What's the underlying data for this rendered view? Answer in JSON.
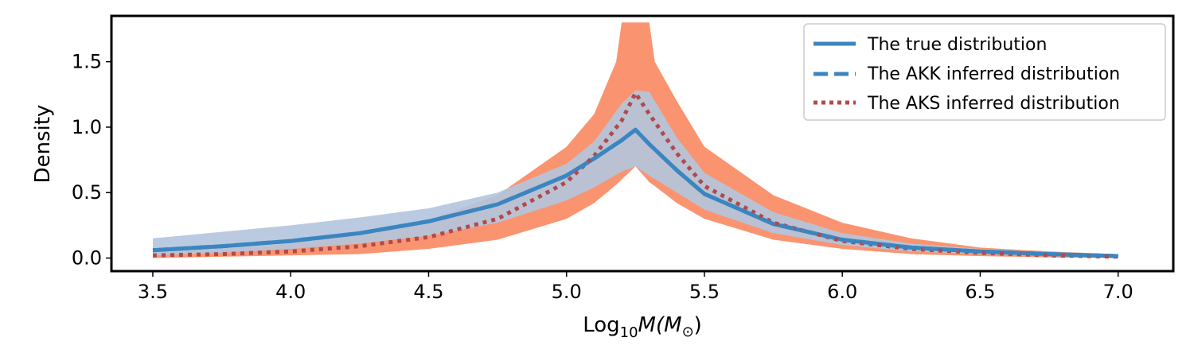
{
  "chart_data": {
    "type": "line",
    "title": "",
    "xlabel_prefix": "Log",
    "xlabel_sub": "10",
    "xlabel_suffix": "M(M",
    "xlabel_sun": "⊙",
    "xlabel_close": ")",
    "ylabel": "Density",
    "xlim": [
      3.35,
      7.2
    ],
    "ylim": [
      -0.1,
      1.85
    ],
    "xticks": [
      3.5,
      4.0,
      4.5,
      5.0,
      5.5,
      6.0,
      6.5,
      7.0
    ],
    "xtick_labels": [
      "3.5",
      "4.0",
      "4.5",
      "5.0",
      "5.5",
      "6.0",
      "6.5",
      "7.0"
    ],
    "yticks": [
      0.0,
      0.5,
      1.0,
      1.5
    ],
    "ytick_labels": [
      "0.0",
      "0.5",
      "1.0",
      "1.5"
    ],
    "legend_position": "top-right",
    "x": [
      3.5,
      3.75,
      4.0,
      4.25,
      4.5,
      4.75,
      5.0,
      5.1,
      5.2,
      5.25,
      5.3,
      5.4,
      5.5,
      5.75,
      6.0,
      6.25,
      6.5,
      6.75,
      7.0
    ],
    "series": [
      {
        "name": "The true distribution",
        "style": "solid",
        "color": "#3b85c0",
        "values": [
          0.06,
          0.09,
          0.13,
          0.19,
          0.28,
          0.41,
          0.63,
          0.76,
          0.9,
          0.98,
          0.87,
          0.67,
          0.49,
          0.26,
          0.14,
          0.08,
          0.05,
          0.03,
          0.015
        ]
      },
      {
        "name": "The AKK inferred distribution",
        "style": "dashed",
        "color": "#3b85c0",
        "values": [
          0.06,
          0.09,
          0.13,
          0.19,
          0.28,
          0.41,
          0.63,
          0.76,
          0.9,
          0.98,
          0.87,
          0.67,
          0.49,
          0.26,
          0.14,
          0.08,
          0.05,
          0.03,
          0.015
        ]
      },
      {
        "name": "The AKS inferred distribution",
        "style": "dotted",
        "color": "#b04a4a",
        "values": [
          0.02,
          0.03,
          0.05,
          0.09,
          0.16,
          0.3,
          0.58,
          0.78,
          1.05,
          1.26,
          1.1,
          0.8,
          0.55,
          0.27,
          0.13,
          0.07,
          0.04,
          0.02,
          0.01
        ]
      }
    ],
    "bands": [
      {
        "name": "AKS band",
        "color": "#fa9470",
        "x": [
          3.5,
          3.75,
          4.0,
          4.25,
          4.5,
          4.75,
          5.0,
          5.1,
          5.18,
          5.2,
          5.25,
          5.3,
          5.32,
          5.4,
          5.5,
          5.75,
          6.0,
          6.25,
          6.5,
          6.75,
          7.0
        ],
        "lower": [
          0.0,
          0.01,
          0.02,
          0.03,
          0.07,
          0.14,
          0.3,
          0.42,
          0.56,
          0.6,
          0.7,
          0.58,
          0.55,
          0.42,
          0.3,
          0.14,
          0.07,
          0.03,
          0.015,
          0.005,
          0.0
        ],
        "upper": [
          0.04,
          0.07,
          0.11,
          0.18,
          0.29,
          0.48,
          0.85,
          1.1,
          1.5,
          1.8,
          1.8,
          1.8,
          1.5,
          1.2,
          0.85,
          0.48,
          0.27,
          0.15,
          0.08,
          0.05,
          0.03
        ]
      },
      {
        "name": "AKK band",
        "color": "#b3c5de",
        "x": [
          3.5,
          3.75,
          4.0,
          4.25,
          4.5,
          4.75,
          5.0,
          5.1,
          5.2,
          5.25,
          5.3,
          5.4,
          5.5,
          5.75,
          6.0,
          6.25,
          6.5,
          6.75,
          7.0
        ],
        "lower": [
          0.02,
          0.04,
          0.07,
          0.11,
          0.17,
          0.27,
          0.44,
          0.54,
          0.66,
          0.7,
          0.63,
          0.5,
          0.37,
          0.19,
          0.1,
          0.05,
          0.03,
          0.015,
          0.005
        ],
        "upper": [
          0.15,
          0.2,
          0.25,
          0.31,
          0.38,
          0.5,
          0.72,
          0.89,
          1.18,
          1.28,
          1.27,
          0.92,
          0.65,
          0.35,
          0.19,
          0.11,
          0.07,
          0.045,
          0.03
        ]
      }
    ]
  }
}
